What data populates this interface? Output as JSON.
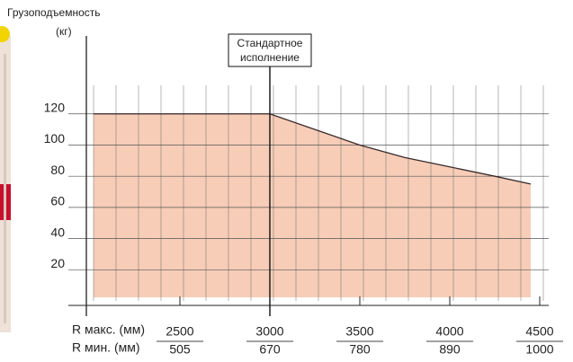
{
  "chart_data": {
    "type": "area",
    "title": "Грузоподъемность",
    "y_unit": "(кг)",
    "annotation": {
      "x": 3000,
      "lines": [
        "Стандартное",
        "исполнение"
      ]
    },
    "x": [
      2020,
      3000,
      3250,
      3500,
      3750,
      4000,
      4250,
      4450
    ],
    "values": [
      120,
      120,
      110,
      100,
      92,
      86,
      80,
      75
    ],
    "color": "#f7cdb8",
    "line_color": "#3a2a2a",
    "xlim": [
      1980,
      4550
    ],
    "ylim": [
      0,
      170
    ],
    "yticks": [
      20,
      40,
      60,
      80,
      100,
      120
    ],
    "xticks": [
      2500,
      3000,
      3500,
      4000,
      4500
    ],
    "r_max_label": "R макс. (мм)",
    "r_min_label": "R мин. (мм)",
    "r_min_values": [
      "505",
      "670",
      "780",
      "890",
      "1000"
    ],
    "grid": true
  }
}
